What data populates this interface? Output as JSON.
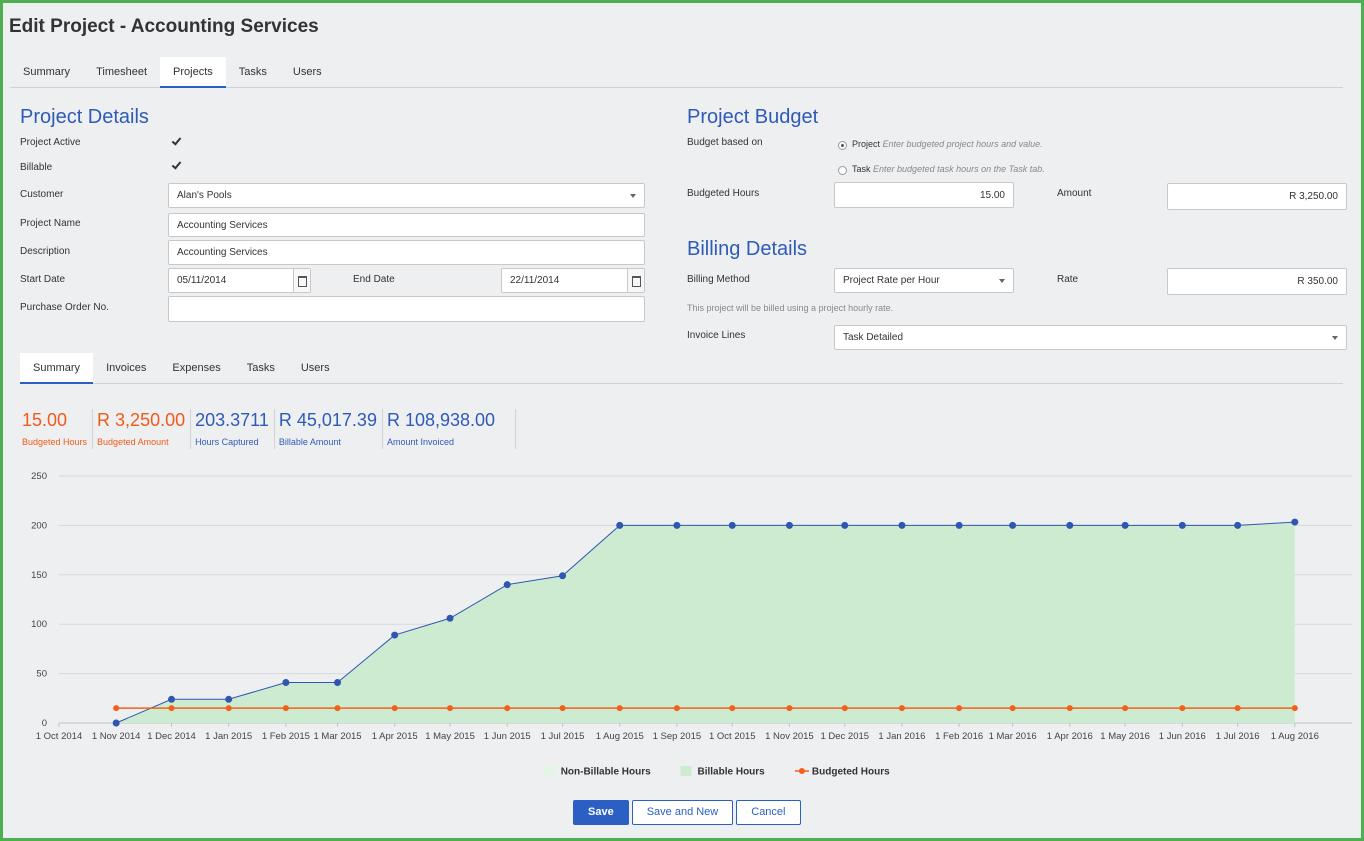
{
  "header": {
    "title": "Edit Project - Accounting Services"
  },
  "tabs": {
    "items": [
      "Summary",
      "Timesheet",
      "Projects",
      "Tasks",
      "Users"
    ],
    "active": 2
  },
  "project_details": {
    "title": "Project Details",
    "active_label": "Project Active",
    "active_checked": true,
    "billable_label": "Billable",
    "billable_checked": true,
    "customer_label": "Customer",
    "customer": "Alan's Pools",
    "name_label": "Project Name",
    "name": "Accounting Services",
    "description_label": "Description",
    "description": "Accounting Services",
    "start_label": "Start Date",
    "start": "05/11/2014",
    "end_label": "End Date",
    "end": "22/11/2014",
    "po_label": "Purchase Order No."
  },
  "project_budget": {
    "title": "Project Budget",
    "based_on_label": "Budget based on",
    "options": [
      {
        "name": "Project",
        "hint": "Enter budgeted project hours and value.",
        "selected": true
      },
      {
        "name": "Task",
        "hint": "Enter budgeted task hours on the Task tab.",
        "selected": false
      }
    ],
    "hours_label": "Budgeted Hours",
    "hours": "15.00",
    "amount_label": "Amount",
    "amount": "R 3,250.00"
  },
  "billing_details": {
    "title": "Billing Details",
    "method_label": "Billing Method",
    "method": "Project Rate per Hour",
    "rate_label": "Rate",
    "rate": "R 350.00",
    "note": "This project will be billed using a project hourly rate.",
    "invoice_lines_label": "Invoice Lines",
    "invoice_lines": "Task Detailed"
  },
  "subtabs": {
    "items": [
      "Summary",
      "Invoices",
      "Expenses",
      "Tasks",
      "Users"
    ],
    "active": 0
  },
  "stats": [
    {
      "value": "15.00",
      "label": "Budgeted Hours",
      "color": "#f05a1a"
    },
    {
      "value": "R 3,250.00",
      "label": "Budgeted Amount",
      "color": "#f05a1a"
    },
    {
      "value": "203.3711",
      "label": "Hours Captured",
      "color": "#2e5bb8"
    },
    {
      "value": "R 45,017.39",
      "label": "Billable Amount",
      "color": "#2e5bb8"
    },
    {
      "value": "R 108,938.00",
      "label": "Amount Invoiced",
      "color": "#2e5bb8"
    }
  ],
  "chart_data": {
    "type": "area",
    "x": [
      "1 Nov 2014",
      "1 Dec 2014",
      "1 Jan 2015",
      "1 Feb 2015",
      "1 Mar 2015",
      "1 Apr 2015",
      "1 May 2015",
      "1 Jun 2015",
      "1 Jul 2015",
      "1 Aug 2015",
      "1 Sep 2015",
      "1 Oct 2015",
      "1 Nov 2015",
      "1 Dec 2015",
      "1 Jan 2016",
      "1 Feb 2016",
      "1 Mar 2016",
      "1 Apr 2016",
      "1 May 2016",
      "1 Jun 2016",
      "1 Jul 2016",
      "1 Aug 2016"
    ],
    "series": [
      {
        "name": "Non-Billable Hours",
        "color": "#e3f5e4",
        "values": [
          0,
          0,
          0,
          0,
          0,
          0,
          0,
          0,
          0,
          0,
          0,
          0,
          0,
          0,
          0,
          0,
          0,
          0,
          0,
          0,
          0,
          0
        ]
      },
      {
        "name": "Billable Hours",
        "color": "#cdebd0",
        "line_color": "#2f56b0",
        "values": [
          0,
          24,
          24,
          41,
          41,
          89,
          106,
          140,
          149,
          200,
          200,
          200,
          200,
          200,
          200,
          200,
          200,
          200,
          200,
          200,
          200,
          203.3711
        ]
      },
      {
        "name": "Budgeted Hours",
        "type": "line",
        "color": "#f2601c",
        "values": [
          15,
          15,
          15,
          15,
          15,
          15,
          15,
          15,
          15,
          15,
          15,
          15,
          15,
          15,
          15,
          15,
          15,
          15,
          15,
          15,
          15,
          15
        ]
      }
    ],
    "xlim": [
      "1 Oct 2014",
      "1 Sep 2016"
    ],
    "xticks": [
      "1 Oct 2014",
      "1 Nov 2014",
      "1 Dec 2014",
      "1 Jan 2015",
      "1 Feb 2015",
      "1 Mar 2015",
      "1 Apr 2015",
      "1 May 2015",
      "1 Jun 2015",
      "1 Jul 2015",
      "1 Aug 2015",
      "1 Sep 2015",
      "1 Oct 2015",
      "1 Nov 2015",
      "1 Dec 2015",
      "1 Jan 2016",
      "1 Feb 2016",
      "1 Mar 2016",
      "1 Apr 2016",
      "1 May 2016",
      "1 Jun 2016",
      "1 Jul 2016",
      "1 Aug 2016"
    ],
    "ylim": [
      0,
      250
    ],
    "yticks": [
      0,
      50,
      100,
      150,
      200,
      250
    ],
    "grid": true,
    "legend": "bottom"
  },
  "buttons": [
    {
      "label": "Save",
      "primary": true
    },
    {
      "label": "Save and New",
      "primary": false
    },
    {
      "label": "Cancel",
      "primary": false
    }
  ]
}
